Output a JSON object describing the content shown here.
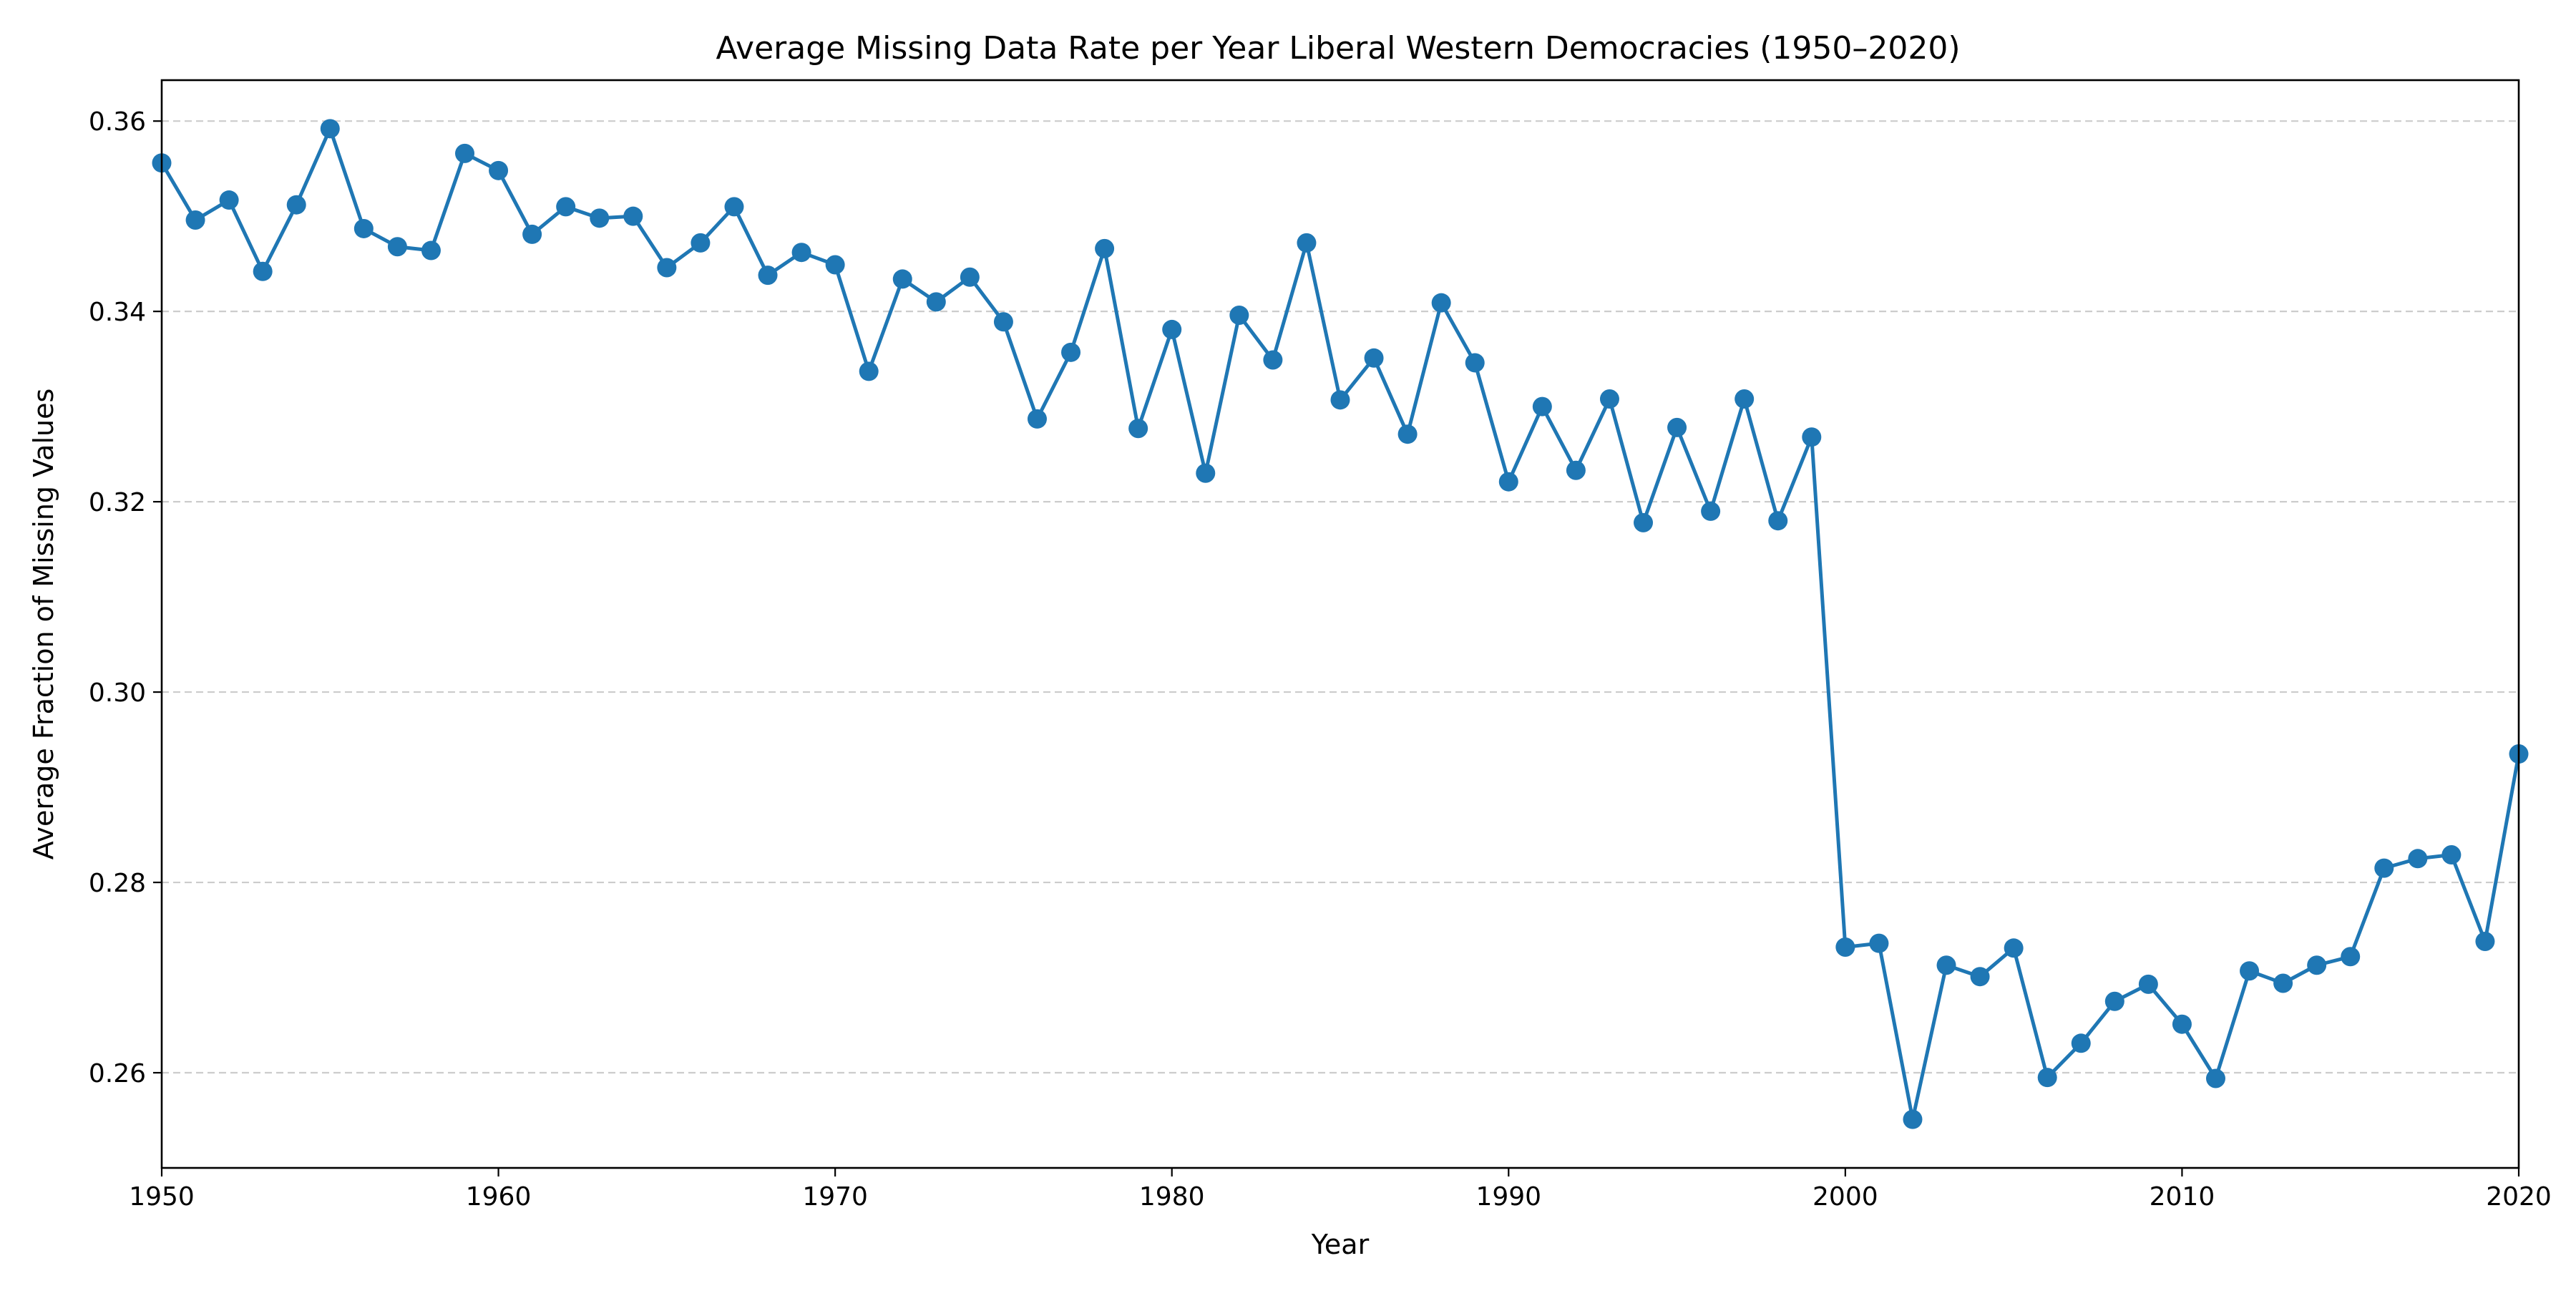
{
  "chart_data": {
    "type": "line",
    "title": "Average Missing Data Rate per Year Liberal Western Democracies (1950–2020)",
    "xlabel": "Year",
    "ylabel": "Average Fraction of Missing Values",
    "xlim": [
      1950,
      2020
    ],
    "ylim": [
      0.25,
      0.3643
    ],
    "xticks": [
      1950,
      1960,
      1970,
      1980,
      1990,
      2000,
      2010,
      2020
    ],
    "yticks": [
      0.26,
      0.28,
      0.3,
      0.32,
      0.34,
      0.36
    ],
    "ytick_labels": [
      "0.26",
      "0.28",
      "0.30",
      "0.32",
      "0.34",
      "0.36"
    ],
    "grid": "y-dashed",
    "legend": "none",
    "series": [
      {
        "color": "#1f77b4",
        "marker": "circle",
        "x": [
          1950,
          1951,
          1952,
          1953,
          1954,
          1955,
          1956,
          1957,
          1958,
          1959,
          1960,
          1961,
          1962,
          1963,
          1964,
          1965,
          1966,
          1967,
          1968,
          1969,
          1970,
          1971,
          1972,
          1973,
          1974,
          1975,
          1976,
          1977,
          1978,
          1979,
          1980,
          1981,
          1982,
          1983,
          1984,
          1985,
          1986,
          1987,
          1988,
          1989,
          1990,
          1991,
          1992,
          1993,
          1994,
          1995,
          1996,
          1997,
          1998,
          1999,
          2000,
          2001,
          2002,
          2003,
          2004,
          2005,
          2006,
          2007,
          2008,
          2009,
          2010,
          2011,
          2012,
          2013,
          2014,
          2015,
          2016,
          2017,
          2018,
          2019,
          2020
        ],
        "values": [
          0.3556,
          0.3496,
          0.3517,
          0.3442,
          0.3512,
          0.3592,
          0.3487,
          0.3468,
          0.3464,
          0.3566,
          0.3548,
          0.3481,
          0.351,
          0.3498,
          0.35,
          0.3446,
          0.3472,
          0.351,
          0.3438,
          0.3462,
          0.3449,
          0.3337,
          0.3434,
          0.341,
          0.3436,
          0.3389,
          0.3287,
          0.3357,
          0.3466,
          0.3277,
          0.3381,
          0.323,
          0.3396,
          0.3349,
          0.3472,
          0.3307,
          0.3351,
          0.3271,
          0.3409,
          0.3346,
          0.3221,
          0.33,
          0.3233,
          0.3308,
          0.3178,
          0.3278,
          0.319,
          0.3308,
          0.318,
          0.3268,
          0.2732,
          0.2736,
          0.2551,
          0.2713,
          0.2701,
          0.2731,
          0.2595,
          0.2631,
          0.2675,
          0.2693,
          0.2651,
          0.2594,
          0.2707,
          0.2694,
          0.2713,
          0.2722,
          0.2815,
          0.2825,
          0.2829,
          0.2738,
          0.2935
        ]
      }
    ]
  }
}
